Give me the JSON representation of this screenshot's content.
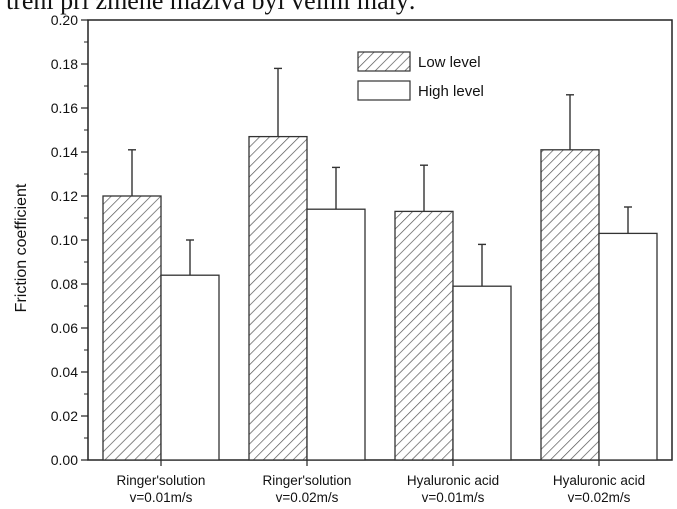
{
  "top_text": "trení pri zmene maziva byl velmi malý.",
  "chart_data": {
    "type": "bar",
    "ylabel": "Friction coefficient",
    "xlabel": "",
    "ylim": [
      0,
      0.2
    ],
    "yticks": [
      "0.00",
      "0.02",
      "0.04",
      "0.06",
      "0.08",
      "0.10",
      "0.12",
      "0.14",
      "0.16",
      "0.18",
      "0.20"
    ],
    "categories": [
      {
        "line1": "Ringer'solution",
        "line2": "v=0.01m/s"
      },
      {
        "line1": "Ringer'solution",
        "line2": "v=0.02m/s"
      },
      {
        "line1": "Hyaluronic acid",
        "line2": "v=0.01m/s"
      },
      {
        "line1": "Hyaluronic acid",
        "line2": "v=0.02m/s"
      }
    ],
    "series": [
      {
        "name": "Low level",
        "pattern": "hatched",
        "values": [
          0.12,
          0.147,
          0.113,
          0.141
        ],
        "errors": [
          0.021,
          0.031,
          0.021,
          0.025
        ]
      },
      {
        "name": "High level",
        "pattern": "plain",
        "values": [
          0.084,
          0.114,
          0.079,
          0.103
        ],
        "errors": [
          0.016,
          0.019,
          0.019,
          0.012
        ]
      }
    ],
    "legend_position": "top-right",
    "colors": {
      "bar_stroke": "#333333",
      "hatch": "#555555",
      "fill_plain": "#ffffff",
      "axis": "#222222"
    }
  }
}
